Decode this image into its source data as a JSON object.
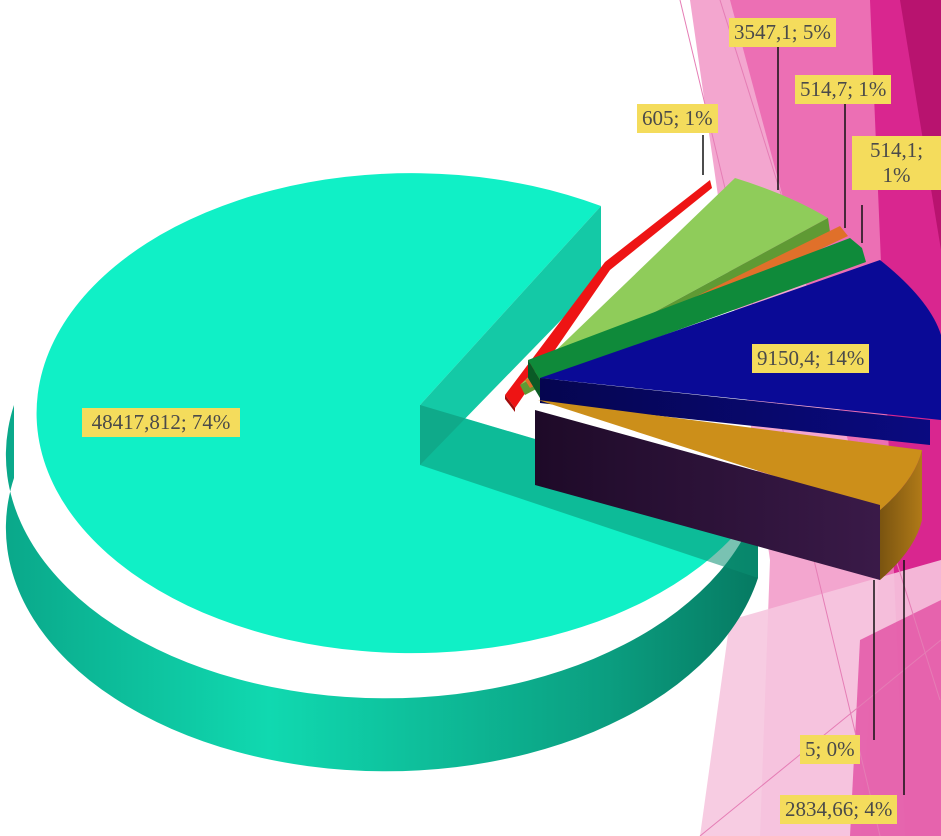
{
  "chart_data": {
    "type": "pie",
    "variant": "3d-exploded",
    "slices": [
      {
        "label": "48417,812; 74%",
        "value": 48417.812,
        "percent": 74,
        "color": "#16f5c8",
        "exploded": false
      },
      {
        "label": "605; 1%",
        "value": 605,
        "percent": 1,
        "color": "#f01a1a",
        "exploded": true
      },
      {
        "label": "3547,1; 5%",
        "value": 3547.1,
        "percent": 5,
        "color": "#8fcc5a",
        "exploded": true
      },
      {
        "label": "514,7; 1%",
        "value": 514.7,
        "percent": 1,
        "color": "#e0702a",
        "exploded": true
      },
      {
        "label": "514,1; 1%",
        "value": 514.1,
        "percent": 1,
        "color": "#0f8a3a",
        "exploded": true
      },
      {
        "label": "9150,4; 14%",
        "value": 9150.4,
        "percent": 14,
        "color": "#0a0a96",
        "exploded": true
      },
      {
        "label": "2834,66; 4%",
        "value": 2834.66,
        "percent": 4,
        "color": "#cc8f1a",
        "exploded": true
      },
      {
        "label": "5; 0%",
        "value": 5,
        "percent": 0,
        "color": "#2e0f3a",
        "exploded": true
      }
    ],
    "label_background": "#f4dc5c",
    "background_theme": "pink-faceted"
  }
}
